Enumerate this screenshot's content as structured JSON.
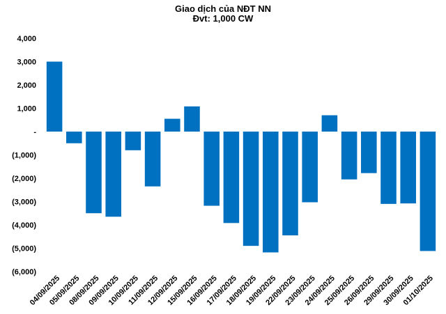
{
  "chart_data": {
    "type": "bar",
    "title": "Giao dịch của NĐT NN",
    "subtitle": "Đvt: 1,000 CW",
    "xlabel": "",
    "ylabel": "",
    "ylim": [
      -6000,
      4000
    ],
    "yticks": [
      4000,
      3000,
      2000,
      1000,
      0,
      -1000,
      -2000,
      -3000,
      -4000,
      -5000,
      -6000
    ],
    "ytick_labels": [
      "4,000",
      "3,000",
      "2,000",
      "1,000",
      "-",
      "(1,000)",
      "(2,000)",
      "(3,000)",
      "(4,000)",
      "(5,000)",
      "(6,000)"
    ],
    "grid": false,
    "legend": "none",
    "bar_color": "#0070c0",
    "categories": [
      "04/09/2025",
      "05/09/2025",
      "08/09/2025",
      "09/09/2025",
      "10/09/2025",
      "11/09/2025",
      "12/09/2025",
      "15/09/2025",
      "16/09/2025",
      "17/09/2025",
      "18/09/2025",
      "19/09/2025",
      "22/09/2025",
      "23/09/2025",
      "24/09/2025",
      "25/09/2025",
      "26/09/2025",
      "29/09/2025",
      "30/09/2025",
      "01/10/2025"
    ],
    "values": [
      3000,
      -500,
      -3500,
      -3650,
      -800,
      -2350,
      550,
      1080,
      -3180,
      -3920,
      -4900,
      -5180,
      -4450,
      -3030,
      700,
      -2050,
      -1780,
      -3100,
      -3080,
      -5120
    ]
  }
}
